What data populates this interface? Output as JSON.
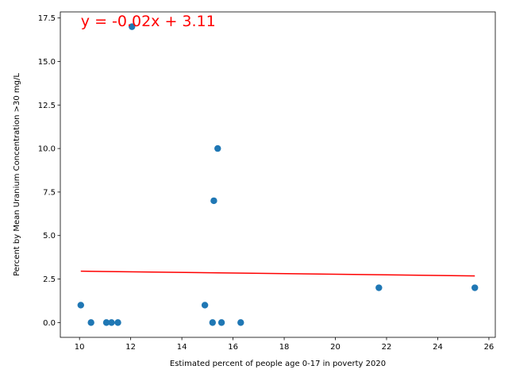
{
  "chart_data": {
    "type": "scatter",
    "title": "",
    "xlabel": "Estimated percent of people age 0-17 in poverty 2020",
    "ylabel": "Percent by Mean Uranium Concentration >30 mg/L",
    "xlim": [
      9.25,
      26.25
    ],
    "ylim": [
      -0.85,
      17.85
    ],
    "xticks": [
      10,
      12,
      14,
      16,
      18,
      20,
      22,
      24,
      26
    ],
    "xtick_labels": [
      "10",
      "12",
      "14",
      "16",
      "18",
      "20",
      "22",
      "24",
      "26"
    ],
    "yticks": [
      0.0,
      2.5,
      5.0,
      7.5,
      10.0,
      12.5,
      15.0,
      17.5
    ],
    "ytick_labels": [
      "0.0",
      "2.5",
      "5.0",
      "7.5",
      "10.0",
      "12.5",
      "15.0",
      "17.5"
    ],
    "grid": false,
    "points": [
      {
        "x": 10.05,
        "y": 1.0
      },
      {
        "x": 10.45,
        "y": 0.0
      },
      {
        "x": 11.05,
        "y": 0.0
      },
      {
        "x": 11.25,
        "y": 0.0
      },
      {
        "x": 11.5,
        "y": 0.0
      },
      {
        "x": 12.05,
        "y": 17.0
      },
      {
        "x": 14.9,
        "y": 1.0
      },
      {
        "x": 15.2,
        "y": 0.0
      },
      {
        "x": 15.25,
        "y": 7.0
      },
      {
        "x": 15.4,
        "y": 10.0
      },
      {
        "x": 15.55,
        "y": 0.0
      },
      {
        "x": 16.3,
        "y": 0.0
      },
      {
        "x": 21.7,
        "y": 2.0
      },
      {
        "x": 25.45,
        "y": 2.0
      }
    ],
    "fit_line": {
      "x": [
        10.05,
        25.45
      ],
      "y": [
        2.95,
        2.68
      ],
      "equation": "y = -0.02x + 3.11"
    },
    "colors": {
      "points": "#1f77b4",
      "fit_line": "#ff0000",
      "equation": "#ff0000"
    }
  }
}
